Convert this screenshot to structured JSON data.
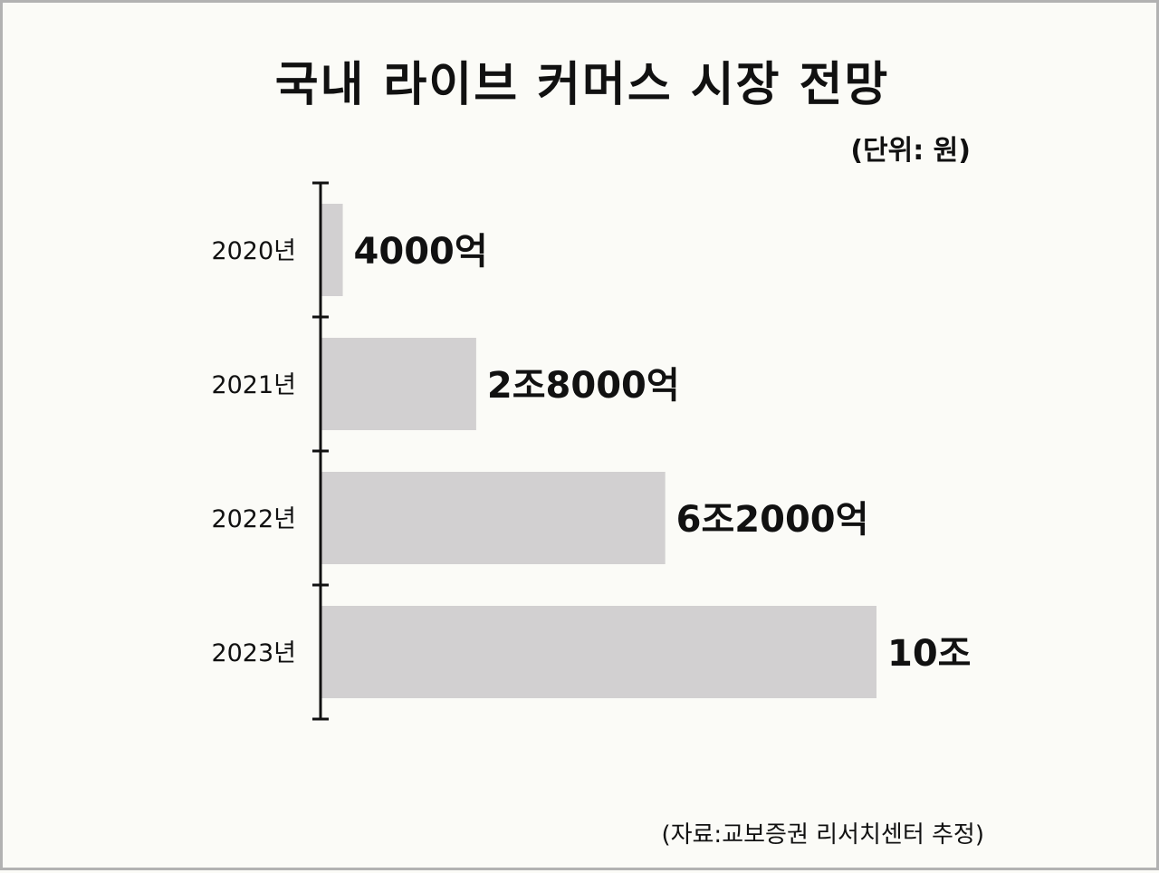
{
  "title": "국내 라이브 커머스 시장 전망",
  "unit_label": "(단위: 원)",
  "source": "(자료:교보증권 리서치센터 추정)",
  "colors": {
    "bar": "#d2d0d1",
    "axis": "#111111",
    "background": "#fbfbf7",
    "text": "#111111"
  },
  "chart_data": {
    "type": "bar",
    "orientation": "horizontal",
    "categories": [
      "2020년",
      "2021년",
      "2022년",
      "2023년"
    ],
    "values": [
      0.4,
      2.8,
      6.2,
      10
    ],
    "value_unit": "조 원",
    "data_labels": [
      "4000억",
      "2조8000억",
      "6조2000억",
      "10조"
    ],
    "xlim": [
      0,
      10
    ],
    "grid": false,
    "legend": "none"
  }
}
